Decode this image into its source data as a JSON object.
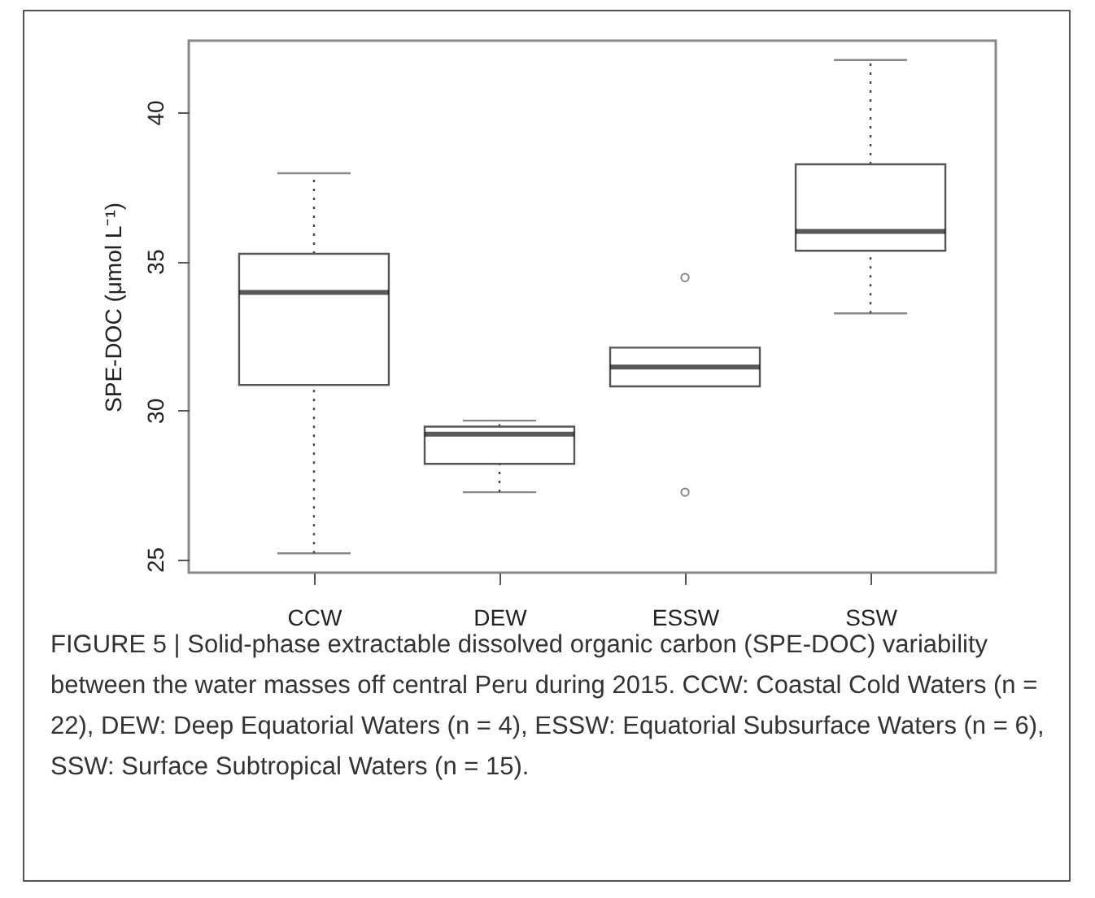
{
  "chart_data": {
    "type": "box",
    "ylabel": "SPE-DOC (μmol L⁻¹)",
    "categories": [
      "CCW",
      "DEW",
      "ESSW",
      "SSW"
    ],
    "boxes": [
      {
        "low": 25.2,
        "q1": 30.85,
        "median": 33.95,
        "q3": 35.25,
        "high": 37.95
      },
      {
        "low": 27.25,
        "q1": 28.2,
        "median": 29.2,
        "q3": 29.45,
        "high": 29.65
      },
      {
        "low": 30.8,
        "q1": 30.8,
        "median": 31.45,
        "q3": 32.1,
        "high": 32.1,
        "outliers": [
          34.45,
          27.25
        ]
      },
      {
        "low": 33.25,
        "q1": 35.35,
        "median": 36.0,
        "q3": 38.25,
        "high": 41.75
      }
    ],
    "ylim": [
      24.55,
      42.4
    ],
    "yticks": [
      25,
      30,
      35,
      40
    ],
    "grid": false,
    "annotations": [
      "FIGURE 5 | Solid-phase extractable dissolved organic carbon (SPE-DOC) variability between the water masses off central Peru during 2015. CCW: Coastal Cold Waters (n = 22), DEW: Deep Equatorial Waters (n = 4), ESSW: Equatorial Subsurface Waters (n = 6), SSW: Surface Subtropical Waters (n = 15)."
    ]
  }
}
